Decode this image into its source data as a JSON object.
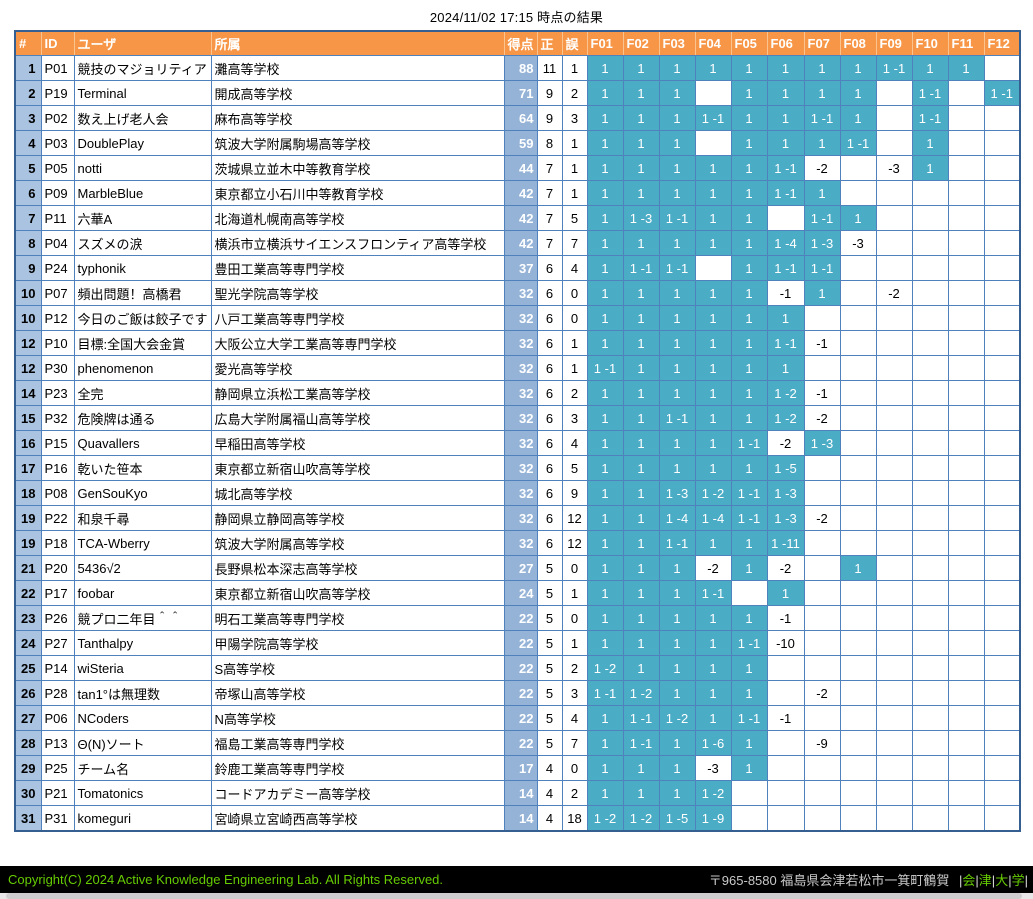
{
  "title": "2024/11/02 17:15  時点の結果",
  "colors": {
    "header_bg": "#F79646",
    "solved_bg": "#4BACC6",
    "rank_bg": "#A9C3E1",
    "score_bg": "#95B3D7",
    "grid_border": "#4F81BD",
    "footer_bg": "#000000",
    "footer_green": "#66CC00"
  },
  "table": {
    "headers": [
      "#",
      "ID",
      "ユーザ",
      "所属",
      "得点",
      "正",
      "誤",
      "F01",
      "F02",
      "F03",
      "F04",
      "F05",
      "F06",
      "F07",
      "F08",
      "F09",
      "F10",
      "F11",
      "F12"
    ],
    "rows": [
      {
        "rank": "1",
        "id": "P01",
        "user": "競技のマジョリティア",
        "org": "灘高等学校",
        "score": "88",
        "ac": "11",
        "wa": "1",
        "problems": [
          "1",
          "1",
          "1",
          "1",
          "1",
          "1",
          "1",
          "1",
          "1 -1",
          "1",
          "1",
          ""
        ]
      },
      {
        "rank": "2",
        "id": "P19",
        "user": "Terminal",
        "org": "開成高等学校",
        "score": "71",
        "ac": "9",
        "wa": "2",
        "problems": [
          "1",
          "1",
          "1",
          "",
          "1",
          "1",
          "1",
          "1",
          "",
          "1 -1",
          "",
          "1 -1"
        ]
      },
      {
        "rank": "3",
        "id": "P02",
        "user": "数え上げ老人会",
        "org": "麻布高等学校",
        "score": "64",
        "ac": "9",
        "wa": "3",
        "problems": [
          "1",
          "1",
          "1",
          "1 -1",
          "1",
          "1",
          "1 -1",
          "1",
          "",
          "1 -1",
          "",
          ""
        ]
      },
      {
        "rank": "4",
        "id": "P03",
        "user": "DoublePlay",
        "org": "筑波大学附属駒場高等学校",
        "score": "59",
        "ac": "8",
        "wa": "1",
        "problems": [
          "1",
          "1",
          "1",
          "",
          "1",
          "1",
          "1",
          "1 -1",
          "",
          "1",
          "",
          ""
        ]
      },
      {
        "rank": "5",
        "id": "P05",
        "user": "notti",
        "org": "茨城県立並木中等教育学校",
        "score": "44",
        "ac": "7",
        "wa": "1",
        "problems": [
          "1",
          "1",
          "1",
          "1",
          "1",
          "1 -1",
          "-2",
          "",
          "-3",
          "1",
          "",
          ""
        ]
      },
      {
        "rank": "6",
        "id": "P09",
        "user": "MarbleBlue",
        "org": "東京都立小石川中等教育学校",
        "score": "42",
        "ac": "7",
        "wa": "1",
        "problems": [
          "1",
          "1",
          "1",
          "1",
          "1",
          "1 -1",
          "1",
          "",
          "",
          "",
          "",
          ""
        ]
      },
      {
        "rank": "7",
        "id": "P11",
        "user": "六華A",
        "org": "北海道札幌南高等学校",
        "score": "42",
        "ac": "7",
        "wa": "5",
        "problems": [
          "1",
          "1 -3",
          "1 -1",
          "1",
          "1",
          "",
          "1 -1",
          "1",
          "",
          "",
          "",
          ""
        ]
      },
      {
        "rank": "8",
        "id": "P04",
        "user": "スズメの涙",
        "org": "横浜市立横浜サイエンスフロンティア高等学校",
        "score": "42",
        "ac": "7",
        "wa": "7",
        "problems": [
          "1",
          "1",
          "1",
          "1",
          "1",
          "1 -4",
          "1 -3",
          "-3",
          "",
          "",
          "",
          ""
        ]
      },
      {
        "rank": "9",
        "id": "P24",
        "user": "typhonik",
        "org": "豊田工業高等専門学校",
        "score": "37",
        "ac": "6",
        "wa": "4",
        "problems": [
          "1",
          "1 -1",
          "1 -1",
          "",
          "1",
          "1 -1",
          "1 -1",
          "",
          "",
          "",
          "",
          ""
        ]
      },
      {
        "rank": "10",
        "id": "P07",
        "user": "頻出問題！高橋君",
        "org": "聖光学院高等学校",
        "score": "32",
        "ac": "6",
        "wa": "0",
        "problems": [
          "1",
          "1",
          "1",
          "1",
          "1",
          "-1",
          "1",
          "",
          "-2",
          "",
          "",
          ""
        ]
      },
      {
        "rank": "10",
        "id": "P12",
        "user": "今日のご飯は餃子です",
        "org": "八戸工業高等専門学校",
        "score": "32",
        "ac": "6",
        "wa": "0",
        "problems": [
          "1",
          "1",
          "1",
          "1",
          "1",
          "1",
          "",
          "",
          "",
          "",
          "",
          ""
        ]
      },
      {
        "rank": "12",
        "id": "P10",
        "user": "目標:全国大会金賞",
        "org": "大阪公立大学工業高等専門学校",
        "score": "32",
        "ac": "6",
        "wa": "1",
        "problems": [
          "1",
          "1",
          "1",
          "1",
          "1",
          "1 -1",
          "-1",
          "",
          "",
          "",
          "",
          ""
        ]
      },
      {
        "rank": "12",
        "id": "P30",
        "user": "phenomenon",
        "org": "愛光高等学校",
        "score": "32",
        "ac": "6",
        "wa": "1",
        "problems": [
          "1 -1",
          "1",
          "1",
          "1",
          "1",
          "1",
          "",
          "",
          "",
          "",
          "",
          ""
        ]
      },
      {
        "rank": "14",
        "id": "P23",
        "user": "全完",
        "org": "静岡県立浜松工業高等学校",
        "score": "32",
        "ac": "6",
        "wa": "2",
        "problems": [
          "1",
          "1",
          "1",
          "1",
          "1",
          "1 -2",
          "-1",
          "",
          "",
          "",
          "",
          ""
        ]
      },
      {
        "rank": "15",
        "id": "P32",
        "user": "危険牌は通る",
        "org": "広島大学附属福山高等学校",
        "score": "32",
        "ac": "6",
        "wa": "3",
        "problems": [
          "1",
          "1",
          "1 -1",
          "1",
          "1",
          "1 -2",
          "-2",
          "",
          "",
          "",
          "",
          ""
        ]
      },
      {
        "rank": "16",
        "id": "P15",
        "user": "Quavallers",
        "org": "早稲田高等学校",
        "score": "32",
        "ac": "6",
        "wa": "4",
        "problems": [
          "1",
          "1",
          "1",
          "1",
          "1 -1",
          "-2",
          "1 -3",
          "",
          "",
          "",
          "",
          ""
        ]
      },
      {
        "rank": "17",
        "id": "P16",
        "user": "乾いた笹本",
        "org": "東京都立新宿山吹高等学校",
        "score": "32",
        "ac": "6",
        "wa": "5",
        "problems": [
          "1",
          "1",
          "1",
          "1",
          "1",
          "1 -5",
          "",
          "",
          "",
          "",
          "",
          ""
        ]
      },
      {
        "rank": "18",
        "id": "P08",
        "user": "GenSouKyo",
        "org": "城北高等学校",
        "score": "32",
        "ac": "6",
        "wa": "9",
        "problems": [
          "1",
          "1",
          "1 -3",
          "1 -2",
          "1 -1",
          "1 -3",
          "",
          "",
          "",
          "",
          "",
          ""
        ]
      },
      {
        "rank": "19",
        "id": "P22",
        "user": "和泉千尋",
        "org": "静岡県立静岡高等学校",
        "score": "32",
        "ac": "6",
        "wa": "12",
        "problems": [
          "1",
          "1",
          "1 -4",
          "1 -4",
          "1 -1",
          "1 -3",
          "-2",
          "",
          "",
          "",
          "",
          ""
        ]
      },
      {
        "rank": "19",
        "id": "P18",
        "user": "TCA-Wberry",
        "org": "筑波大学附属高等学校",
        "score": "32",
        "ac": "6",
        "wa": "12",
        "problems": [
          "1",
          "1",
          "1 -1",
          "1",
          "1",
          "1 -11",
          "",
          "",
          "",
          "",
          "",
          ""
        ]
      },
      {
        "rank": "21",
        "id": "P20",
        "user": "5436√2",
        "org": "長野県松本深志高等学校",
        "score": "27",
        "ac": "5",
        "wa": "0",
        "problems": [
          "1",
          "1",
          "1",
          "-2",
          "1",
          "-2",
          "",
          "1",
          "",
          "",
          "",
          ""
        ]
      },
      {
        "rank": "22",
        "id": "P17",
        "user": "foobar",
        "org": "東京都立新宿山吹高等学校",
        "score": "24",
        "ac": "5",
        "wa": "1",
        "problems": [
          "1",
          "1",
          "1",
          "1 -1",
          "",
          "1",
          "",
          "",
          "",
          "",
          "",
          ""
        ]
      },
      {
        "rank": "23",
        "id": "P26",
        "user": "競プロ二年目＾＾",
        "org": "明石工業高等専門学校",
        "score": "22",
        "ac": "5",
        "wa": "0",
        "problems": [
          "1",
          "1",
          "1",
          "1",
          "1",
          "-1",
          "",
          "",
          "",
          "",
          "",
          ""
        ]
      },
      {
        "rank": "24",
        "id": "P27",
        "user": "Tanthalpy",
        "org": "甲陽学院高等学校",
        "score": "22",
        "ac": "5",
        "wa": "1",
        "problems": [
          "1",
          "1",
          "1",
          "1",
          "1 -1",
          "-10",
          "",
          "",
          "",
          "",
          "",
          ""
        ]
      },
      {
        "rank": "25",
        "id": "P14",
        "user": "wiSteria",
        "org": "S高等学校",
        "score": "22",
        "ac": "5",
        "wa": "2",
        "problems": [
          "1 -2",
          "1",
          "1",
          "1",
          "1",
          "",
          "",
          "",
          "",
          "",
          "",
          ""
        ]
      },
      {
        "rank": "26",
        "id": "P28",
        "user": "tan1°は無理数",
        "org": "帝塚山高等学校",
        "score": "22",
        "ac": "5",
        "wa": "3",
        "problems": [
          "1 -1",
          "1 -2",
          "1",
          "1",
          "1",
          "",
          "-2",
          "",
          "",
          "",
          "",
          ""
        ]
      },
      {
        "rank": "27",
        "id": "P06",
        "user": "NCoders",
        "org": "N高等学校",
        "score": "22",
        "ac": "5",
        "wa": "4",
        "problems": [
          "1",
          "1 -1",
          "1 -2",
          "1",
          "1 -1",
          "-1",
          "",
          "",
          "",
          "",
          "",
          ""
        ]
      },
      {
        "rank": "28",
        "id": "P13",
        "user": "Θ(N)ソート",
        "org": "福島工業高等専門学校",
        "score": "22",
        "ac": "5",
        "wa": "7",
        "problems": [
          "1",
          "1 -1",
          "1",
          "1 -6",
          "1",
          "",
          "-9",
          "",
          "",
          "",
          "",
          ""
        ]
      },
      {
        "rank": "29",
        "id": "P25",
        "user": "チーム名",
        "org": "鈴鹿工業高等専門学校",
        "score": "17",
        "ac": "4",
        "wa": "0",
        "problems": [
          "1",
          "1",
          "1",
          "-3",
          "1",
          "",
          "",
          "",
          "",
          "",
          "",
          ""
        ]
      },
      {
        "rank": "30",
        "id": "P21",
        "user": "Tomatonics",
        "org": "コードアカデミー高等学校",
        "score": "14",
        "ac": "4",
        "wa": "2",
        "problems": [
          "1",
          "1",
          "1",
          "1 -2",
          "",
          "",
          "",
          "",
          "",
          "",
          "",
          ""
        ]
      },
      {
        "rank": "31",
        "id": "P31",
        "user": "komeguri",
        "org": "宮崎県立宮崎西高等学校",
        "score": "14",
        "ac": "4",
        "wa": "18",
        "problems": [
          "1 -2",
          "1 -2",
          "1 -5",
          "1 -9",
          "",
          "",
          "",
          "",
          "",
          "",
          "",
          ""
        ]
      }
    ]
  },
  "footer": {
    "copyright": "Copyright(C) 2024 Active Knowledge Engineering Lab. All Rights Reserved.",
    "address": "〒965-8580 福島県会津若松市一箕町鶴賀",
    "university": "会津大学"
  }
}
